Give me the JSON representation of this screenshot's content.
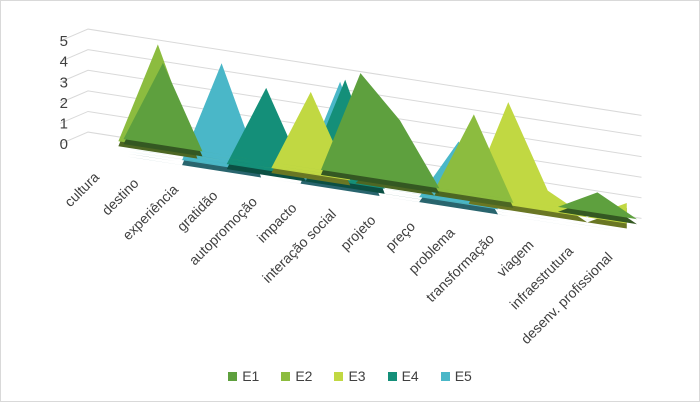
{
  "chart_data": {
    "type": "area",
    "variant": "3d-area",
    "title": "",
    "xlabel": "",
    "ylabel": "",
    "ylim": [
      0,
      5
    ],
    "yticks": [
      0,
      1,
      2,
      3,
      4,
      5
    ],
    "grid": true,
    "legend_position": "bottom",
    "categories": [
      "cultura",
      "destino",
      "experiência",
      "gratidão",
      "autopromoção",
      "impacto",
      "interação social",
      "projeto",
      "preço",
      "problema",
      "transformação",
      "viagem",
      "infraestrutura",
      "desenv. profissional"
    ],
    "series": [
      {
        "name": "E1",
        "color": "#5ea03e",
        "values": [
          0,
          4,
          0,
          0,
          0,
          0,
          5,
          3,
          0,
          0,
          0,
          0,
          1,
          0
        ]
      },
      {
        "name": "E2",
        "color": "#8cbc3f",
        "values": [
          0,
          5,
          0,
          0,
          0,
          0,
          0,
          2,
          0,
          4,
          0,
          0,
          0,
          0
        ]
      },
      {
        "name": "E3",
        "color": "#c1d842",
        "values": [
          0,
          0,
          0,
          0,
          0,
          4,
          0,
          0,
          0,
          0,
          5,
          1,
          0,
          1
        ]
      },
      {
        "name": "E4",
        "color": "#148f79",
        "values": [
          0,
          0,
          0,
          0,
          4,
          0,
          5,
          0,
          0,
          0,
          0,
          0,
          0,
          0
        ]
      },
      {
        "name": "E5",
        "color": "#4ab7c8",
        "values": [
          0,
          0,
          0,
          5,
          0,
          0,
          5,
          0,
          0,
          3,
          0,
          0,
          0,
          0
        ]
      }
    ]
  }
}
